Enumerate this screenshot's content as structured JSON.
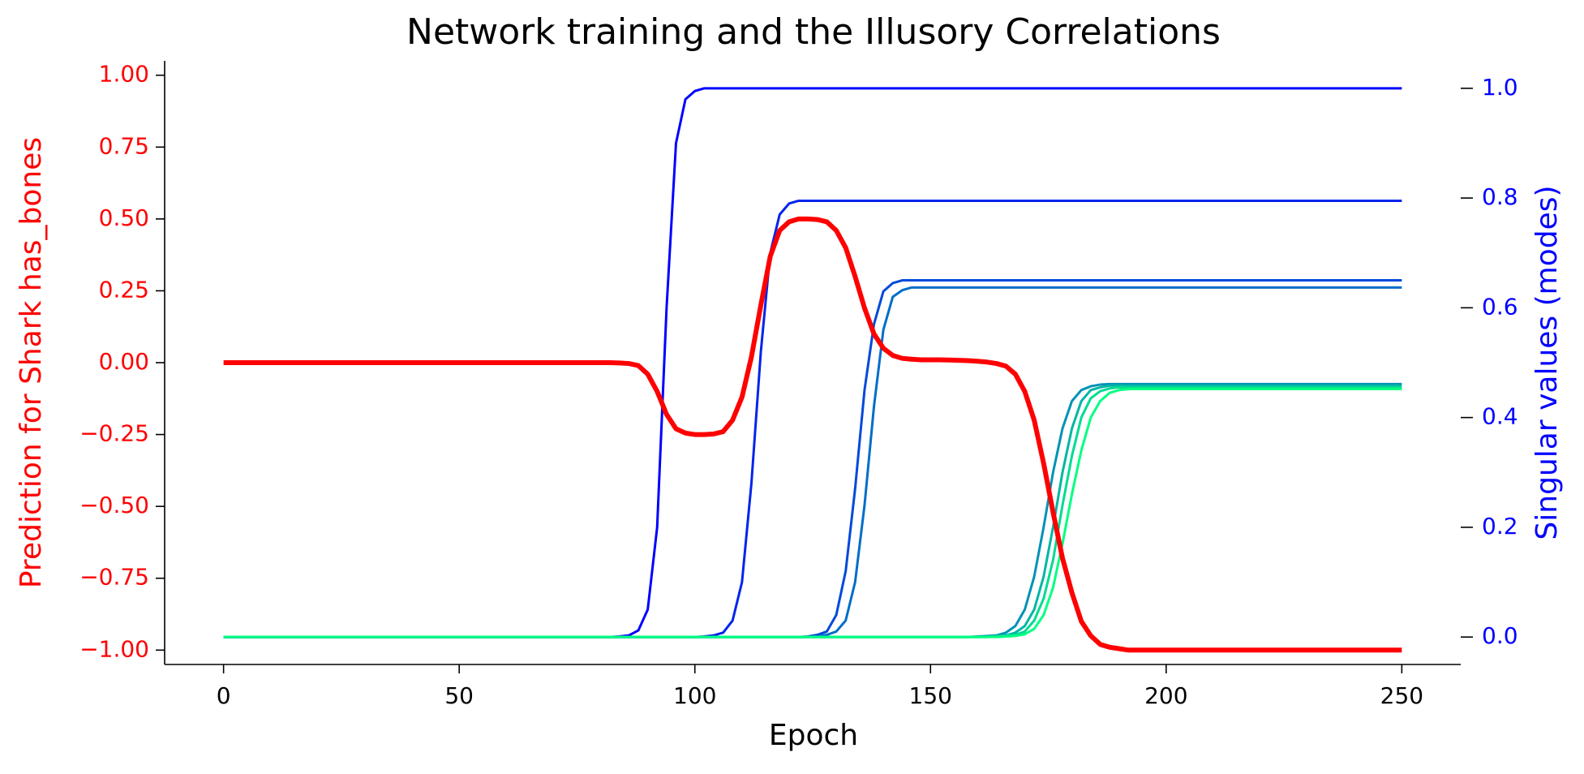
{
  "chart_data": {
    "type": "line",
    "title": "Network training and the Illusory Correlations",
    "xlabel": "Epoch",
    "ylabel": "Prediction for Shark has_bones",
    "y2label": "Singular values (modes)",
    "ylabel_color": "#ff0000",
    "y2label_color": "#0000ff",
    "xlim": [
      -12.5,
      262.5
    ],
    "ylim": [
      -1.05,
      1.05
    ],
    "y2lim": [
      -0.05,
      1.05
    ],
    "xticks": [
      0,
      50,
      100,
      150,
      200,
      250
    ],
    "yticks": [
      {
        "value": -1,
        "label": "−1.00"
      },
      {
        "value": -0.75,
        "label": "−0.75"
      },
      {
        "value": -0.5,
        "label": "−0.50"
      },
      {
        "value": -0.25,
        "label": "−0.25"
      },
      {
        "value": 0,
        "label": "0.00"
      },
      {
        "value": 0.25,
        "label": "0.25"
      },
      {
        "value": 0.5,
        "label": "0.50"
      },
      {
        "value": 0.75,
        "label": "0.75"
      },
      {
        "value": 1,
        "label": "1.00"
      }
    ],
    "y2ticks": [
      {
        "value": 0,
        "label": "0.0"
      },
      0.2,
      0.4,
      0.6,
      0.8,
      {
        "value": 1,
        "label": "1.0"
      }
    ],
    "x": [
      0,
      20,
      40,
      60,
      80,
      82,
      84,
      86,
      88,
      90,
      92,
      94,
      96,
      98,
      100,
      102,
      104,
      106,
      108,
      110,
      112,
      114,
      116,
      118,
      120,
      122,
      124,
      126,
      128,
      130,
      132,
      134,
      136,
      138,
      140,
      142,
      144,
      146,
      148,
      150,
      152,
      154,
      156,
      158,
      160,
      162,
      164,
      166,
      168,
      170,
      172,
      174,
      176,
      178,
      180,
      182,
      184,
      186,
      188,
      190,
      192,
      194,
      196,
      198,
      200,
      220,
      240,
      250
    ],
    "series": [
      {
        "color": "#0000ff",
        "axis": "y2",
        "values": [
          0,
          0,
          0,
          0,
          0,
          0,
          0.001,
          0.003,
          0.012,
          0.05,
          0.2,
          0.6,
          0.9,
          0.98,
          0.995,
          1,
          1,
          1,
          1,
          1,
          1,
          1,
          1,
          1,
          1,
          1,
          1,
          1,
          1,
          1,
          1,
          1,
          1,
          1,
          1,
          1,
          1,
          1,
          1,
          1,
          1,
          1,
          1,
          1,
          1,
          1,
          1,
          1,
          1,
          1,
          1,
          1,
          1,
          1,
          1,
          1,
          1,
          1,
          1,
          1,
          1,
          1,
          1,
          1,
          1,
          1,
          1,
          1
        ]
      },
      {
        "color": "#0024ed",
        "axis": "y2",
        "values": [
          0,
          0,
          0,
          0,
          0,
          0,
          0,
          0,
          0,
          0,
          0,
          0,
          0,
          0,
          0,
          0.001,
          0.003,
          0.008,
          0.03,
          0.1,
          0.28,
          0.52,
          0.7,
          0.77,
          0.79,
          0.795,
          0.795,
          0.795,
          0.795,
          0.795,
          0.795,
          0.795,
          0.795,
          0.795,
          0.795,
          0.795,
          0.795,
          0.795,
          0.795,
          0.795,
          0.795,
          0.795,
          0.795,
          0.795,
          0.795,
          0.795,
          0.795,
          0.795,
          0.795,
          0.795,
          0.795,
          0.795,
          0.795,
          0.795,
          0.795,
          0.795,
          0.795,
          0.795,
          0.795,
          0.795,
          0.795,
          0.795,
          0.795,
          0.795,
          0.795,
          0.795,
          0.795,
          0.795
        ]
      },
      {
        "color": "#0049db",
        "axis": "y2",
        "values": [
          0,
          0,
          0,
          0,
          0,
          0,
          0,
          0,
          0,
          0,
          0,
          0,
          0,
          0,
          0,
          0,
          0,
          0,
          0,
          0,
          0,
          0,
          0,
          0,
          0,
          0,
          0.001,
          0.004,
          0.01,
          0.04,
          0.12,
          0.27,
          0.45,
          0.57,
          0.63,
          0.645,
          0.65,
          0.65,
          0.65,
          0.65,
          0.65,
          0.65,
          0.65,
          0.65,
          0.65,
          0.65,
          0.65,
          0.65,
          0.65,
          0.65,
          0.65,
          0.65,
          0.65,
          0.65,
          0.65,
          0.65,
          0.65,
          0.65,
          0.65,
          0.65,
          0.65,
          0.65,
          0.65,
          0.65,
          0.65,
          0.65,
          0.65,
          0.65
        ]
      },
      {
        "color": "#006dc9",
        "axis": "y2",
        "values": [
          0,
          0,
          0,
          0,
          0,
          0,
          0,
          0,
          0,
          0,
          0,
          0,
          0,
          0,
          0,
          0,
          0,
          0,
          0,
          0,
          0,
          0,
          0,
          0,
          0,
          0,
          0,
          0.001,
          0.004,
          0.01,
          0.03,
          0.1,
          0.24,
          0.42,
          0.56,
          0.62,
          0.632,
          0.637,
          0.637,
          0.637,
          0.637,
          0.637,
          0.637,
          0.637,
          0.637,
          0.637,
          0.637,
          0.637,
          0.637,
          0.637,
          0.637,
          0.637,
          0.637,
          0.637,
          0.637,
          0.637,
          0.637,
          0.637,
          0.637,
          0.637,
          0.637,
          0.637,
          0.637,
          0.637,
          0.637,
          0.637,
          0.637,
          0.637
        ]
      },
      {
        "color": "#0092b6",
        "axis": "y2",
        "values": [
          0,
          0,
          0,
          0,
          0,
          0,
          0,
          0,
          0,
          0,
          0,
          0,
          0,
          0,
          0,
          0,
          0,
          0,
          0,
          0,
          0,
          0,
          0,
          0,
          0,
          0,
          0,
          0,
          0,
          0,
          0,
          0,
          0,
          0,
          0,
          0,
          0,
          0,
          0,
          0,
          0,
          0,
          0,
          0,
          0.001,
          0.002,
          0.003,
          0.008,
          0.02,
          0.05,
          0.11,
          0.2,
          0.3,
          0.38,
          0.43,
          0.45,
          0.457,
          0.46,
          0.461,
          0.461,
          0.461,
          0.461,
          0.461,
          0.461,
          0.461,
          0.461,
          0.461,
          0.461
        ]
      },
      {
        "color": "#00b6a4",
        "axis": "y2",
        "values": [
          0,
          0,
          0,
          0,
          0,
          0,
          0,
          0,
          0,
          0,
          0,
          0,
          0,
          0,
          0,
          0,
          0,
          0,
          0,
          0,
          0,
          0,
          0,
          0,
          0,
          0,
          0,
          0,
          0,
          0,
          0,
          0,
          0,
          0,
          0,
          0,
          0,
          0,
          0,
          0,
          0,
          0,
          0,
          0,
          0,
          0.001,
          0.002,
          0.003,
          0.008,
          0.02,
          0.05,
          0.11,
          0.2,
          0.3,
          0.38,
          0.43,
          0.45,
          0.455,
          0.458,
          0.458,
          0.458,
          0.458,
          0.458,
          0.458,
          0.458,
          0.458,
          0.458,
          0.458
        ]
      },
      {
        "color": "#00db92",
        "axis": "y2",
        "values": [
          0,
          0,
          0,
          0,
          0,
          0,
          0,
          0,
          0,
          0,
          0,
          0,
          0,
          0,
          0,
          0,
          0,
          0,
          0,
          0,
          0,
          0,
          0,
          0,
          0,
          0,
          0,
          0,
          0,
          0,
          0,
          0,
          0,
          0,
          0,
          0,
          0,
          0,
          0,
          0,
          0,
          0,
          0,
          0,
          0,
          0,
          0.001,
          0.002,
          0.004,
          0.01,
          0.03,
          0.07,
          0.14,
          0.24,
          0.33,
          0.4,
          0.435,
          0.448,
          0.453,
          0.455,
          0.455,
          0.455,
          0.455,
          0.455,
          0.455,
          0.455,
          0.455,
          0.455
        ]
      },
      {
        "color": "#00ff80",
        "axis": "y2",
        "values": [
          0,
          0,
          0,
          0,
          0,
          0,
          0,
          0,
          0,
          0,
          0,
          0,
          0,
          0,
          0,
          0,
          0,
          0,
          0,
          0,
          0,
          0,
          0,
          0,
          0,
          0,
          0,
          0,
          0,
          0,
          0,
          0,
          0,
          0,
          0,
          0,
          0,
          0,
          0,
          0,
          0,
          0,
          0,
          0,
          0,
          0,
          0,
          0.001,
          0.002,
          0.005,
          0.015,
          0.04,
          0.09,
          0.17,
          0.26,
          0.34,
          0.4,
          0.43,
          0.445,
          0.45,
          0.452,
          0.452,
          0.452,
          0.452,
          0.452,
          0.452,
          0.452,
          0.452
        ]
      },
      {
        "color": "#ff0000",
        "axis": "y",
        "values": [
          0,
          0,
          0,
          0,
          0,
          0,
          -0.001,
          -0.003,
          -0.01,
          -0.04,
          -0.1,
          -0.18,
          -0.23,
          -0.245,
          -0.25,
          -0.25,
          -0.248,
          -0.24,
          -0.2,
          -0.12,
          0.02,
          0.2,
          0.37,
          0.46,
          0.49,
          0.5,
          0.5,
          0.498,
          0.49,
          0.46,
          0.4,
          0.3,
          0.19,
          0.1,
          0.05,
          0.025,
          0.015,
          0.012,
          0.01,
          0.01,
          0.01,
          0.009,
          0.008,
          0.007,
          0.005,
          0.002,
          -0.003,
          -0.012,
          -0.04,
          -0.1,
          -0.2,
          -0.35,
          -0.52,
          -0.68,
          -0.8,
          -0.9,
          -0.95,
          -0.98,
          -0.99,
          -0.995,
          -1,
          -1,
          -1,
          -1,
          -1,
          -1,
          -1,
          -1
        ]
      }
    ]
  }
}
